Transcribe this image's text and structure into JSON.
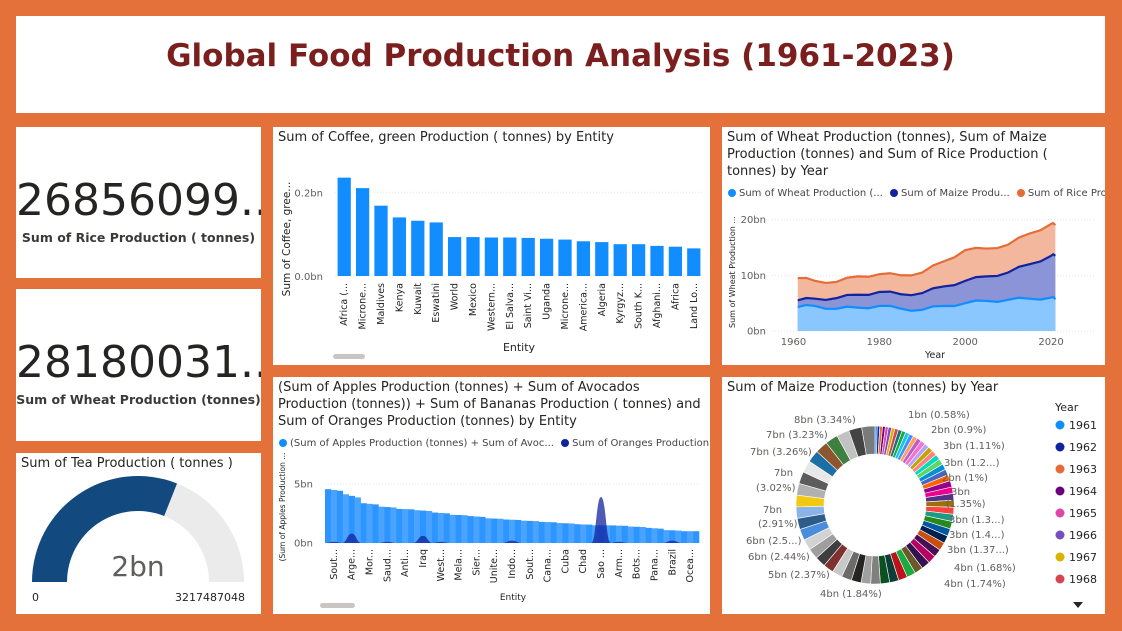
{
  "header": {
    "title": "Global Food Production Analysis (1961-2023)"
  },
  "kpi_rice": {
    "value": "26856099...",
    "label": "Sum of Rice  Production ( tonnes)"
  },
  "kpi_wheat": {
    "value": "28180031...",
    "label": "Sum of Wheat Production (tonnes)"
  },
  "gauge": {
    "title": "Sum of Tea Production ( tonnes )",
    "value_label": "2bn",
    "min_label": "0",
    "max_label": "3217487048",
    "fill_fraction": 0.62,
    "fill_color": "#12497E"
  },
  "coffee": {
    "title": "Sum of Coffee, green Production ( tonnes) by Entity",
    "ylabel": "Sum of Coffee, gree...",
    "xlabel": "Entity",
    "ticks": [
      {
        "v": 0,
        "label": "0.0bn"
      },
      {
        "v": 0.2,
        "label": "0.2bn"
      }
    ],
    "categories": [
      "Africa (...",
      "Microne...",
      "Maldives",
      "Kenya",
      "Kuwait",
      "Eswatini",
      "World",
      "Mexico",
      "Western...",
      "El Salva...",
      "Saint Vi...",
      "Uganda",
      "Microne...",
      "America...",
      "Algeria",
      "Kyrgyz...",
      "South K...",
      "Afghani...",
      "Africa",
      "Land Lo..."
    ],
    "values": [
      0.235,
      0.21,
      0.168,
      0.14,
      0.132,
      0.128,
      0.093,
      0.093,
      0.092,
      0.092,
      0.091,
      0.089,
      0.087,
      0.083,
      0.081,
      0.076,
      0.076,
      0.072,
      0.07,
      0.066
    ],
    "ymax": 0.27,
    "color": "#118DFF"
  },
  "grains": {
    "title": "Sum of Wheat Production (tonnes), Sum of Maize Production (tonnes) and Sum of Rice Production ( tonnes) by Year",
    "legend": [
      {
        "label": "Sum of Wheat Production (...",
        "color": "#118DFF"
      },
      {
        "label": "Sum of Maize Produ...",
        "color": "#12239E"
      },
      {
        "label": "Sum of Rice  Pro...",
        "color": "#E66C37"
      }
    ],
    "ylabel": "Sum of Wheat Production ...",
    "xlabel": "Year",
    "yticks": [
      {
        "v": 0,
        "label": "0bn"
      },
      {
        "v": 10,
        "label": "10bn"
      },
      {
        "v": 20,
        "label": "20bn"
      }
    ],
    "xticks": [
      1960,
      1980,
      2000,
      2020
    ],
    "years": [
      1961,
      1965,
      1970,
      1975,
      1980,
      1985,
      1990,
      1995,
      2000,
      2005,
      2010,
      2015,
      2020,
      2021
    ],
    "wheat": [
      4.3,
      4.5,
      4.0,
      4.2,
      4.5,
      4.0,
      3.8,
      4.5,
      5.0,
      5.4,
      5.6,
      5.8,
      6.0,
      5.7
    ],
    "maize": [
      5.5,
      5.8,
      5.9,
      6.5,
      7.0,
      6.6,
      6.8,
      8.0,
      9.0,
      9.8,
      10.5,
      12.0,
      13.5,
      13.5
    ],
    "rice": [
      9.5,
      9.0,
      8.8,
      9.8,
      10.2,
      10.0,
      10.5,
      12.5,
      14.5,
      14.8,
      15.5,
      17.5,
      19.2,
      19.0
    ],
    "ymax": 21
  },
  "fruit": {
    "title": "(Sum of Apples Production (tonnes) + Sum of Avocados Production (tonnes)) + Sum of Bananas Production ( tonnes) and Sum of Oranges Production (tonnes) by Entity",
    "legend": [
      {
        "label": "(Sum of Apples Production (tonnes) + Sum of Avoc...",
        "color": "#118DFF"
      },
      {
        "label": "Sum of Oranges  Production (t...",
        "color": "#12239E"
      }
    ],
    "ylabel": "(Sum of Apples Production ...",
    "xlabel": "Entity",
    "yticks": [
      {
        "v": 0,
        "label": "0bn"
      },
      {
        "v": 5,
        "label": "5bn"
      }
    ],
    "categories": [
      "Sout...",
      "Arge...",
      "Mor...",
      "Saud...",
      "Anti...",
      "Iraq",
      "West...",
      "Mela...",
      "Sier...",
      "Unite...",
      "Indo...",
      "Sout...",
      "Cana...",
      "Cuba",
      "Chad",
      "Sao ...",
      "Arm...",
      "Bots...",
      "Pana...",
      "Brazil",
      "Ocea..."
    ],
    "apples": [
      4.6,
      4.2,
      3.4,
      3.1,
      2.9,
      2.8,
      2.6,
      2.4,
      2.3,
      2.1,
      2.0,
      1.9,
      1.8,
      1.7,
      1.6,
      1.5,
      1.5,
      1.4,
      1.3,
      1.1,
      1.0
    ],
    "oranges": [
      0.1,
      0.8,
      0.0,
      0.1,
      0.0,
      0.6,
      0.1,
      0.0,
      0.0,
      0.0,
      0.2,
      0.0,
      0.0,
      0.0,
      0.0,
      3.9,
      0.1,
      0.0,
      0.0,
      0.2,
      0.0
    ],
    "ymax": 5.6
  },
  "maize_donut": {
    "title": "Sum of Maize Production (tonnes) by Year",
    "legend_title": "Year",
    "legend": [
      {
        "label": "1961",
        "color": "#118DFF"
      },
      {
        "label": "1962",
        "color": "#12239E"
      },
      {
        "label": "1963",
        "color": "#E66C37"
      },
      {
        "label": "1964",
        "color": "#6B007B"
      },
      {
        "label": "1965",
        "color": "#E044A7"
      },
      {
        "label": "1966",
        "color": "#744EC2"
      },
      {
        "label": "1967",
        "color": "#D9B300"
      },
      {
        "label": "1968",
        "color": "#D64550"
      }
    ],
    "labels_right": [
      "1bn (0.58%)",
      "2bn (0.9%)",
      "3bn (1.11%)",
      "3bn (1.2...)",
      "2bn (1%)",
      "3bn",
      "(1.35%)",
      "3bn (1.3...)",
      "3bn (1.4...)",
      "3bn (1.37...)",
      "4bn (1.68%)",
      "4bn (1.74%)",
      "4bn (1.84%)"
    ],
    "labels_left": [
      "8bn (3.34%)",
      "7bn (3.23%)",
      "7bn (3.26%)",
      "7bn",
      "(3.02%)",
      "7bn",
      "(2.91%)",
      "6bn (2.5...)",
      "6bn (2.44%)",
      "5bn (2.37%)"
    ],
    "palette": [
      "#118DFF",
      "#12239E",
      "#E66C37",
      "#6B007B",
      "#E044A7",
      "#744EC2",
      "#D9B300",
      "#D64550",
      "#197278",
      "#1AAB40",
      "#15C6F4",
      "#4092FF",
      "#FFA058",
      "#BE5DC9",
      "#F472D0",
      "#B5A1FF",
      "#C4A200",
      "#FF8080",
      "#00DBBC",
      "#5BD667",
      "#0091D5",
      "#4668C5",
      "#FF6300",
      "#99008A",
      "#EC008C",
      "#533285",
      "#99700A",
      "#FF4141",
      "#1F9A85",
      "#25891C",
      "#0057A2",
      "#002050",
      "#C94F0F",
      "#450F54",
      "#B60064",
      "#34124F",
      "#6A5A29",
      "#1AAB40",
      "#BA141A",
      "#0C3D37",
      "#0B511F",
      "#808080",
      "#A0A0A0",
      "#252423",
      "#6B6B6B",
      "#C8C8C8",
      "#7F312F",
      "#3E3E3E",
      "#9E9E9E",
      "#D2D2D2",
      "#4A8DDC",
      "#2E5C8A",
      "#8AB4E8",
      "#F2C811",
      "#B0B0B0",
      "#5C5C5C",
      "#E8E8E8",
      "#1C6EA4",
      "#8E562E",
      "#3F7F3F",
      "#C2C2C2",
      "#444444",
      "#7A7A7A"
    ]
  }
}
